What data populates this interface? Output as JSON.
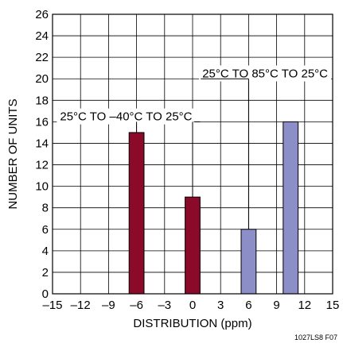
{
  "chart_data": {
    "type": "bar",
    "xlabel": "DISTRIBUTION (ppm)",
    "ylabel": "NUMBER OF UNITS",
    "xlim": [
      -15,
      15
    ],
    "ylim": [
      0,
      26
    ],
    "xticks": [
      -15,
      -12,
      -9,
      -6,
      -3,
      0,
      3,
      6,
      9,
      12,
      15
    ],
    "yticks": [
      0,
      2,
      4,
      6,
      8,
      10,
      12,
      14,
      16,
      18,
      20,
      22,
      24,
      26
    ],
    "xtick_labels": [
      "–15",
      "–12",
      "–9",
      "–6",
      "–3",
      "0",
      "3",
      "6",
      "9",
      "12",
      "15"
    ],
    "grid": true,
    "series": [
      {
        "name": "25°C TO –40°C TO 25°C",
        "color": "#8b0a2a",
        "x": [
          -6,
          0
        ],
        "values": [
          15,
          9
        ]
      },
      {
        "name": "25°C TO 85°C TO 25°C",
        "color": "#8c8ec8",
        "x": [
          6,
          10.5
        ],
        "values": [
          6,
          16
        ]
      }
    ],
    "annotations": [
      {
        "text": "25°C TO –40°C TO 25°C",
        "series": 0
      },
      {
        "text": "25°C TO 85°C TO 25°C",
        "series": 1
      }
    ],
    "footnote": "1027LS8 F07"
  }
}
